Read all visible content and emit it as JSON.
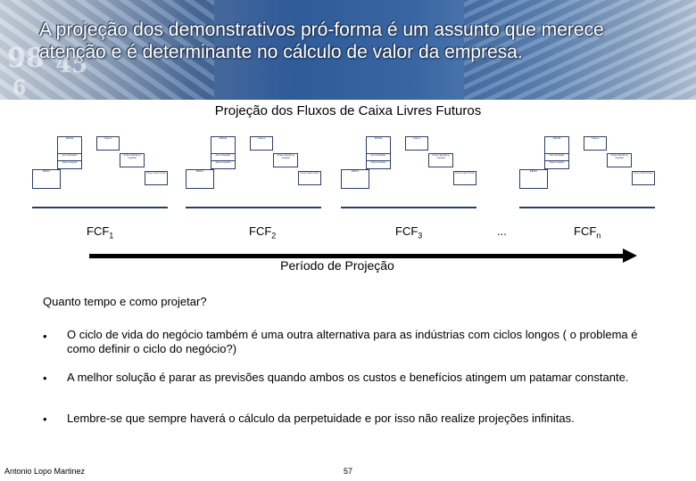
{
  "header": {
    "title": "A projeção dos demonstrativos pró-forma é um assunto que merece atenção e é determinante no cálculo de valor da empresa.",
    "banner_numbers": [
      "98",
      "45",
      "6"
    ]
  },
  "diagram": {
    "title": "Projeção dos Fluxos de Caixa Livres Futuros",
    "box_labels": [
      "Ebitda",
      "Capex",
      "Amortização",
      "Δ Net Working Capital",
      "Depreciação",
      "EBIAT",
      "Free Cash Flow"
    ]
  },
  "timeline": {
    "fcf": [
      {
        "base": "FCF",
        "sub": "1"
      },
      {
        "base": "FCF",
        "sub": "2"
      },
      {
        "base": "FCF",
        "sub": "3"
      },
      {
        "base": "...",
        "sub": ""
      },
      {
        "base": "FCF",
        "sub": "n"
      }
    ],
    "arrow_label": "Período de Projeção"
  },
  "content": {
    "question": "Quanto tempo e como projetar?",
    "bullet_symbol": "•",
    "bullets": [
      "O ciclo de vida do negócio também é uma outra alternativa para as indústrias com ciclos longos ( o problema é como definir o ciclo do negócio?)",
      "A melhor solução é parar as previsões quando ambos os custos e benefícios atingem um patamar constante.",
      "Lembre-se que sempre haverá o cálculo da perpetuidade e por isso não realize projeções infinitas."
    ]
  },
  "footer": {
    "author": "Antonio Lopo Martinez",
    "page": "57"
  },
  "colors": {
    "banner_blue": "#2f5b98",
    "diagram_stroke": "#2b3d66"
  }
}
